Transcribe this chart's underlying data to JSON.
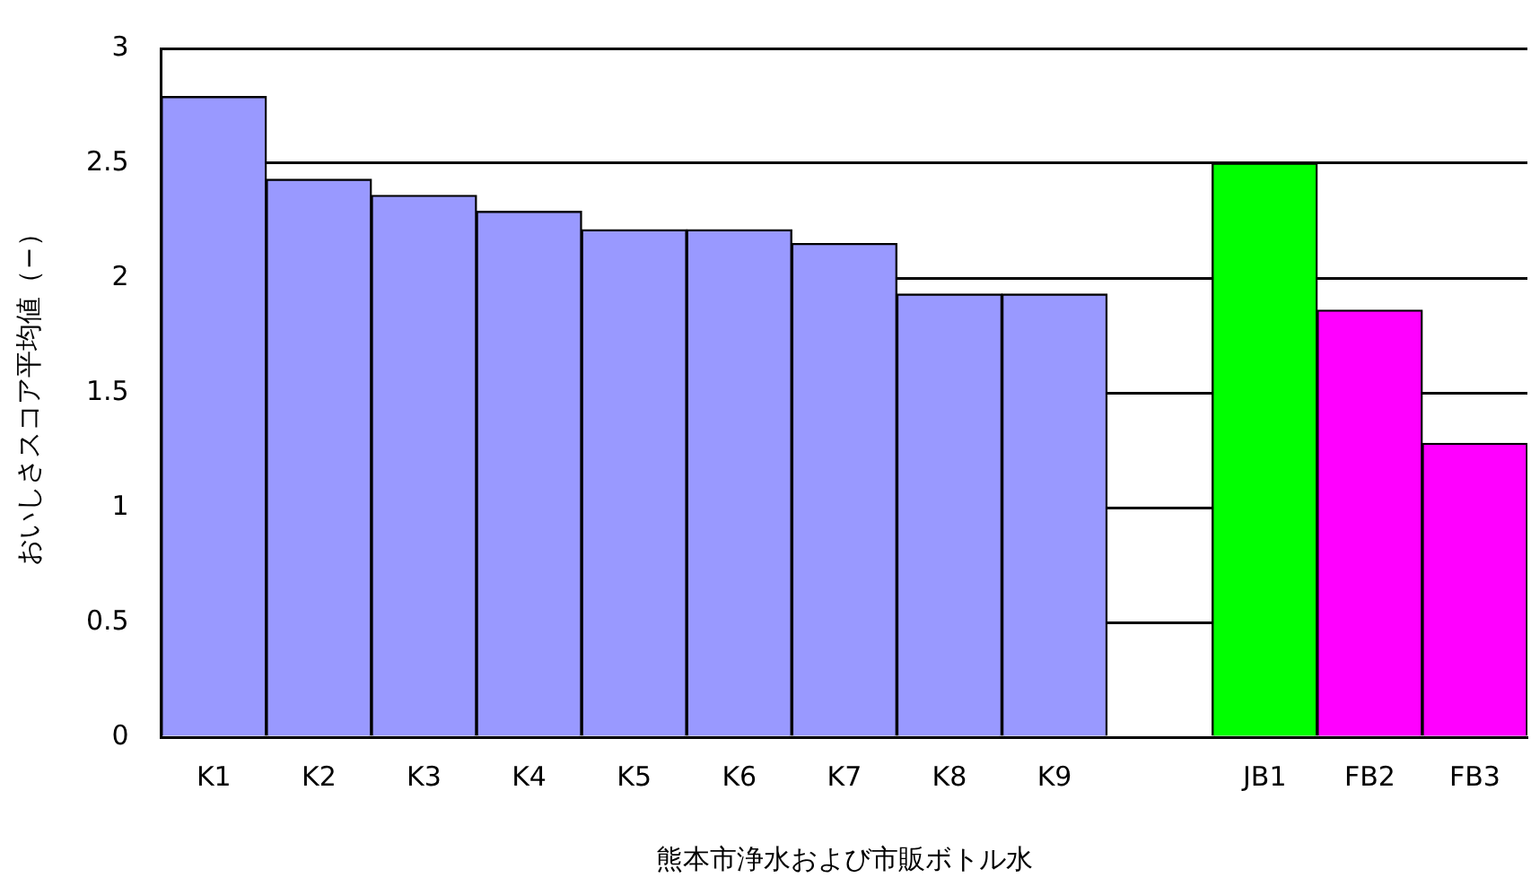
{
  "chart_data": {
    "type": "bar",
    "xlabel": "熊本市浄水および市販ボトル水",
    "ylabel": "おいしさスコア平均値（−）",
    "categories": [
      "K1",
      "K2",
      "K3",
      "K4",
      "K5",
      "K6",
      "K7",
      "K8",
      "K9",
      null,
      "JB1",
      "FB2",
      "FB3"
    ],
    "values": [
      2.79,
      2.43,
      2.36,
      2.29,
      2.21,
      2.21,
      2.15,
      1.93,
      1.93,
      null,
      2.5,
      1.86,
      1.28
    ],
    "colors": [
      "#9999ff",
      "#9999ff",
      "#9999ff",
      "#9999ff",
      "#9999ff",
      "#9999ff",
      "#9999ff",
      "#9999ff",
      "#9999ff",
      "#ffffff",
      "#00ff00",
      "#ff00ff",
      "#ff00ff"
    ],
    "ylim": [
      0,
      3
    ],
    "yticks": [
      0,
      0.5,
      1,
      1.5,
      2,
      2.5,
      3
    ],
    "grid": "y",
    "legend": false
  }
}
